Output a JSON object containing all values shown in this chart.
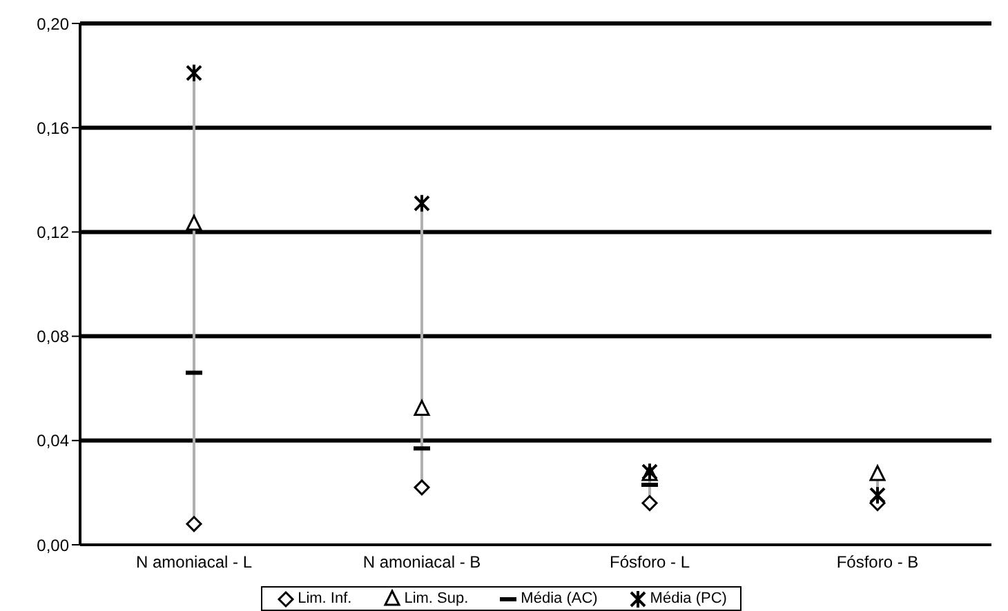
{
  "chart_data": {
    "type": "scatter",
    "categories": [
      "N amoniacal - L",
      "N amoniacal - B",
      "Fósforo - L",
      "Fósforo - B"
    ],
    "series": [
      {
        "name": "Lim. Inf.",
        "color": "#000000",
        "marker": "diamond",
        "values": [
          0.008,
          0.022,
          0.016,
          0.016
        ]
      },
      {
        "name": "Lim. Sup.",
        "color": "#000000",
        "marker": "triangle",
        "values": [
          0.123,
          0.052,
          0.027,
          0.027
        ]
      },
      {
        "name": "Média (AC)",
        "color": "#000000",
        "values": [
          0.066,
          0.037,
          0.023,
          null
        ]
      },
      {
        "name": "Média (PC)",
        "color": "#000000",
        "marker": "cross",
        "values": [
          0.181,
          0.131,
          0.028,
          0.019
        ]
      }
    ],
    "ylim": [
      0,
      0.2
    ],
    "yticks": [
      {
        "value": 0,
        "label": "0,00"
      },
      {
        "value": 0.04,
        "label": "0,04"
      },
      {
        "value": 0.08,
        "label": "0,08"
      },
      {
        "value": 0.12,
        "label": "0,12"
      },
      {
        "value": 0.16,
        "label": "0,16"
      },
      {
        "value": 0.2,
        "label": "0,20"
      }
    ],
    "grid": "y",
    "legend": "bottom"
  }
}
